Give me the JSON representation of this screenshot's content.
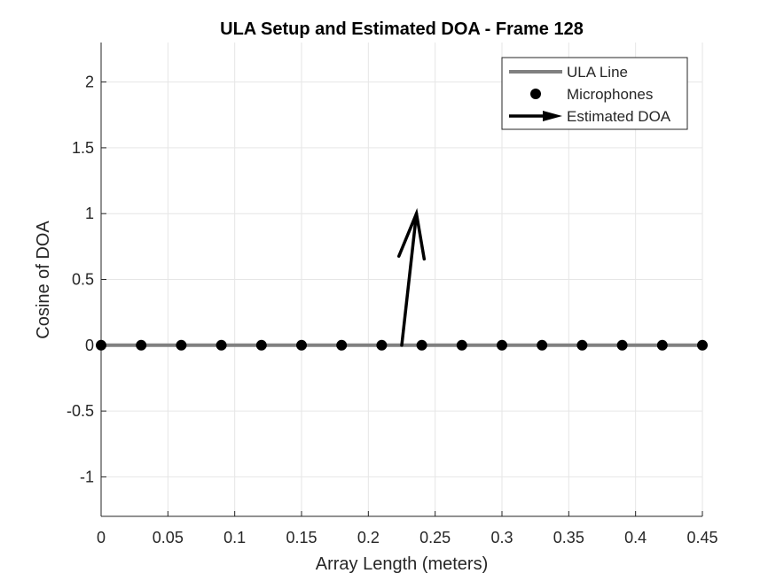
{
  "chart_data": {
    "type": "line",
    "title": "ULA Setup and Estimated DOA - Frame 128",
    "xlabel": "Array Length (meters)",
    "ylabel": "Cosine of DOA",
    "xlim": [
      0,
      0.45
    ],
    "ylim": [
      -1.3,
      2.3
    ],
    "x_ticks": [
      0,
      0.05,
      0.1,
      0.15,
      0.2,
      0.25,
      0.3,
      0.35,
      0.4,
      0.45
    ],
    "x_tick_labels": [
      "0",
      "0.05",
      "0.1",
      "0.15",
      "0.2",
      "0.25",
      "0.3",
      "0.35",
      "0.4",
      "0.45"
    ],
    "y_ticks": [
      -1,
      -0.5,
      0,
      0.5,
      1,
      1.5,
      2
    ],
    "y_tick_labels": [
      "-1",
      "-0.5",
      "0",
      "0.5",
      "1",
      "1.5",
      "2"
    ],
    "grid": true,
    "legend_position": "top-right",
    "series": [
      {
        "name": "ULA Line",
        "kind": "line",
        "color": "#808080",
        "x": [
          0,
          0.45
        ],
        "y": [
          0,
          0
        ]
      },
      {
        "name": "Microphones",
        "kind": "scatter",
        "color": "#000000",
        "x": [
          0,
          0.03,
          0.06,
          0.09,
          0.12,
          0.15,
          0.18,
          0.21,
          0.24,
          0.27,
          0.3,
          0.33,
          0.36,
          0.39,
          0.42,
          0.45
        ],
        "y": [
          0,
          0,
          0,
          0,
          0,
          0,
          0,
          0,
          0,
          0,
          0,
          0,
          0,
          0,
          0,
          0
        ]
      },
      {
        "name": "Estimated DOA",
        "kind": "arrow",
        "color": "#000000",
        "x": [
          0.225,
          0.236
        ],
        "y": [
          0,
          1
        ]
      }
    ]
  }
}
